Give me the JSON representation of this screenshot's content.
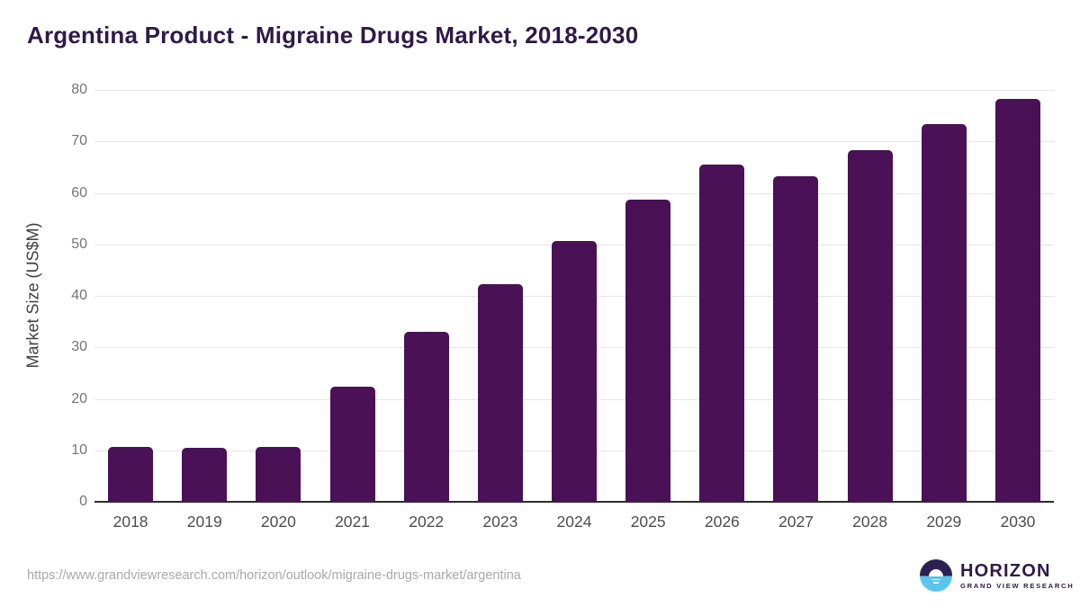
{
  "chart": {
    "title": "Argentina Product - Migraine Drugs Market, 2018-2030",
    "ylabel": "Market Size (US$M)"
  },
  "chart_data": {
    "type": "bar",
    "title": "Argentina Product - Migraine Drugs Market, 2018-2030",
    "xlabel": "",
    "ylabel": "Market Size (US$M)",
    "categories": [
      "2018",
      "2019",
      "2020",
      "2021",
      "2022",
      "2023",
      "2024",
      "2025",
      "2026",
      "2027",
      "2028",
      "2029",
      "2030"
    ],
    "values": [
      10.7,
      10.5,
      10.7,
      22.4,
      33.1,
      42.2,
      50.7,
      58.7,
      65.5,
      63.3,
      68.3,
      73.4,
      78.2
    ],
    "ylim": [
      0,
      80
    ],
    "ytick_interval": 10,
    "grid": "horizontal-only",
    "legend_position": "none",
    "bar_color": "#4a1156"
  },
  "colors": {
    "title_text": "#2e1a47",
    "bar": "#4a1156",
    "gridline": "#e6e6e6",
    "axis_line": "#2b2b2b",
    "y_tick_text": "#757575",
    "x_tick_text": "#4d4d4d",
    "url_text": "#a9a9a9",
    "logo_purple": "#2e2050",
    "logo_blue": "#5bc5ef"
  },
  "footer": {
    "source_url": "https://www.grandviewresearch.com/horizon/outlook/migraine-drugs-market/argentina",
    "logo": {
      "title": "HORIZON",
      "subtitle": "GRAND VIEW RESEARCH",
      "icon": "horizon-sun-over-water-icon"
    }
  }
}
